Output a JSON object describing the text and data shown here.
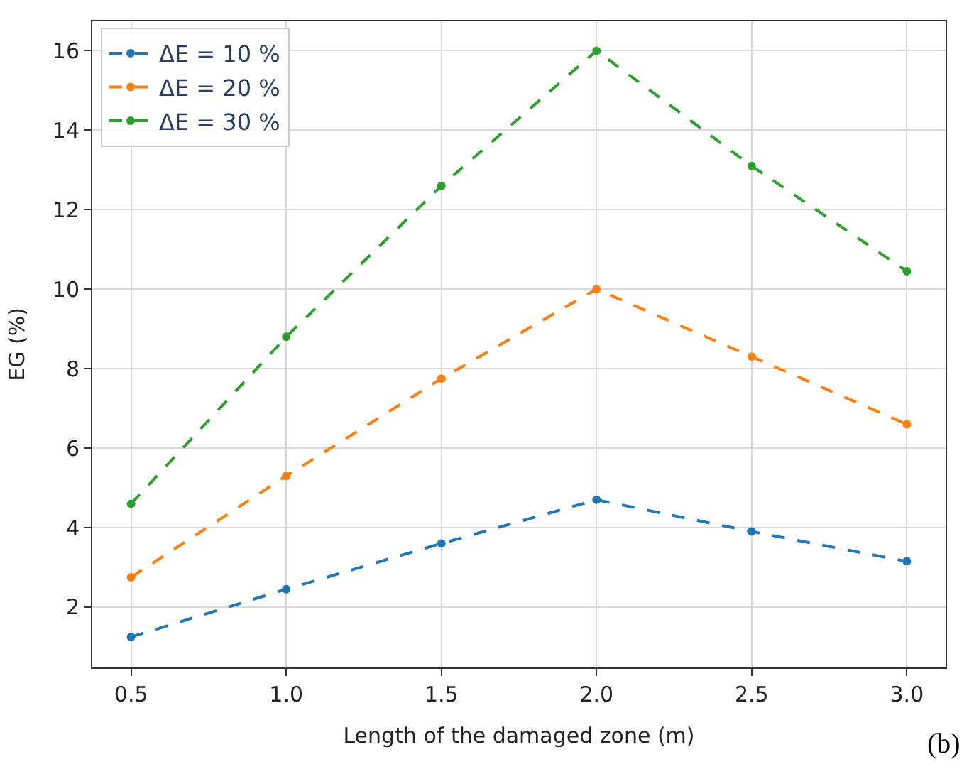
{
  "chart_data": {
    "type": "line",
    "xlabel": "Length of the damaged zone (m)",
    "ylabel": "EG (%)",
    "x": [
      0.5,
      1.0,
      1.5,
      2.0,
      2.5,
      3.0
    ],
    "series": [
      {
        "name": "ΔE = 10 %",
        "color": "#1f77b4",
        "values": [
          1.25,
          2.45,
          3.6,
          4.7,
          3.9,
          3.15
        ]
      },
      {
        "name": "ΔE = 20 %",
        "color": "#ff7f0e",
        "values": [
          2.75,
          5.3,
          7.75,
          10.0,
          8.3,
          6.6
        ]
      },
      {
        "name": "ΔE = 30 %",
        "color": "#2ca02c",
        "values": [
          4.6,
          8.8,
          12.6,
          16.0,
          13.1,
          10.45
        ]
      }
    ],
    "xlim": [
      0.375,
      3.125
    ],
    "xticks": [
      {
        "value": 0.5,
        "label": "0.5"
      },
      {
        "value": 1.0,
        "label": "1.0"
      },
      {
        "value": 1.5,
        "label": "1.5"
      },
      {
        "value": 2.0,
        "label": "2.0"
      },
      {
        "value": 2.5,
        "label": "2.5"
      },
      {
        "value": 3.0,
        "label": "3.0"
      }
    ],
    "ylim": [
      0.48,
      16.74
    ],
    "yticks": [
      2,
      4,
      6,
      8,
      10,
      12,
      14,
      16
    ],
    "grid": true,
    "legend": "top left",
    "marker": "circle",
    "line_style": "dashed",
    "annotations": [
      "(b)"
    ]
  }
}
